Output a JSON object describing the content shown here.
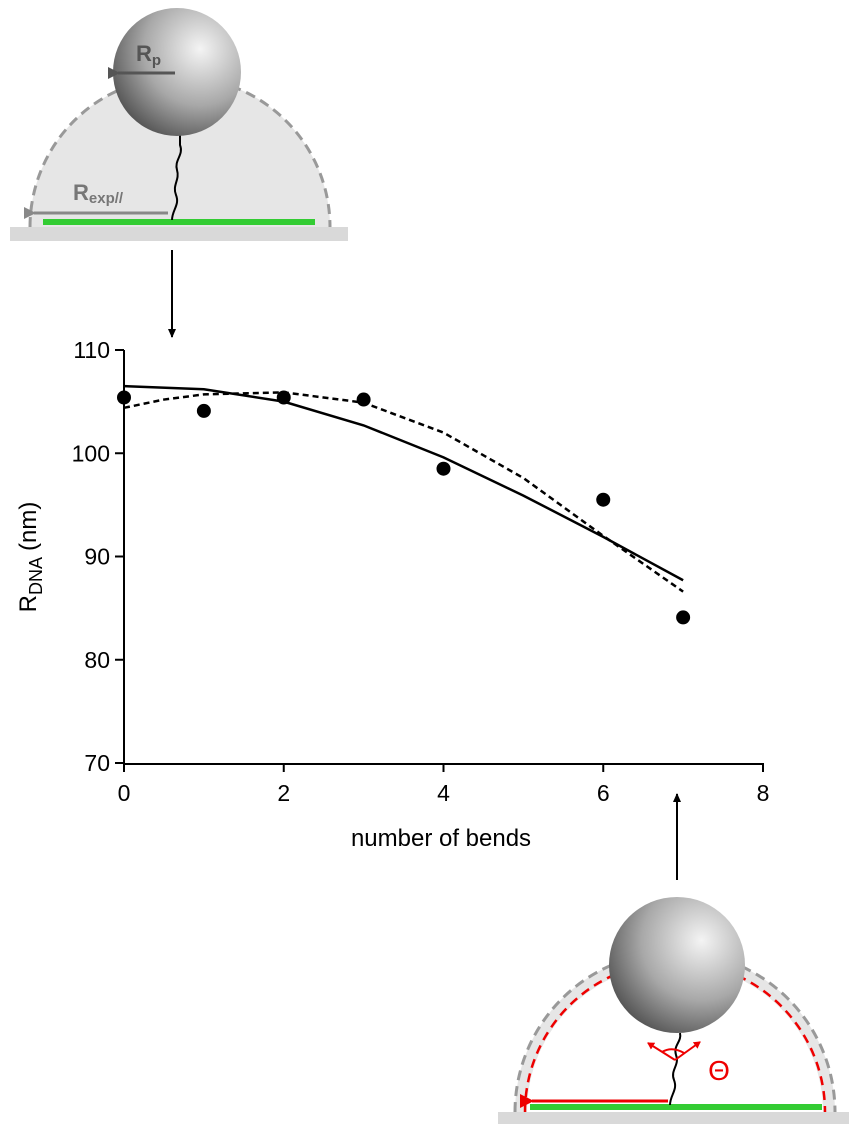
{
  "chart_data": {
    "type": "scatter",
    "xlabel": "number of bends",
    "ylabel": "R",
    "ylabel_sub": "DNA",
    "ylabel_unit": "(nm)",
    "xlim": [
      0,
      8
    ],
    "xticks": [
      0,
      2,
      4,
      6,
      8
    ],
    "ylim": [
      70,
      110
    ],
    "yticks": [
      70,
      80,
      90,
      100,
      110
    ],
    "series": [
      {
        "mode": "markers",
        "color": "#000000",
        "x": [
          0,
          1,
          2,
          3,
          4,
          6,
          7
        ],
        "values": [
          105.4,
          104.1,
          105.4,
          105.2,
          98.5,
          95.5,
          84.1
        ]
      },
      {
        "mode": "line",
        "dash": false,
        "color": "#000000",
        "x": [
          0,
          1,
          2,
          3,
          4,
          5,
          6,
          7
        ],
        "values": [
          106.5,
          106.2,
          105.0,
          102.7,
          99.6,
          95.9,
          91.9,
          87.7
        ]
      },
      {
        "mode": "line",
        "dash": true,
        "color": "#000000",
        "x": [
          0,
          0.5,
          1,
          2,
          3,
          4,
          5,
          6,
          7
        ],
        "values": [
          104.4,
          105.2,
          105.7,
          105.9,
          104.9,
          102.0,
          97.6,
          92.0,
          86.6
        ]
      }
    ]
  },
  "diagrams": {
    "top": {
      "radius_label": "R",
      "radius_sub": "p",
      "extension_label": "R",
      "extension_sub": "exp//"
    },
    "bottom": {
      "angle_label": "Θ"
    }
  }
}
